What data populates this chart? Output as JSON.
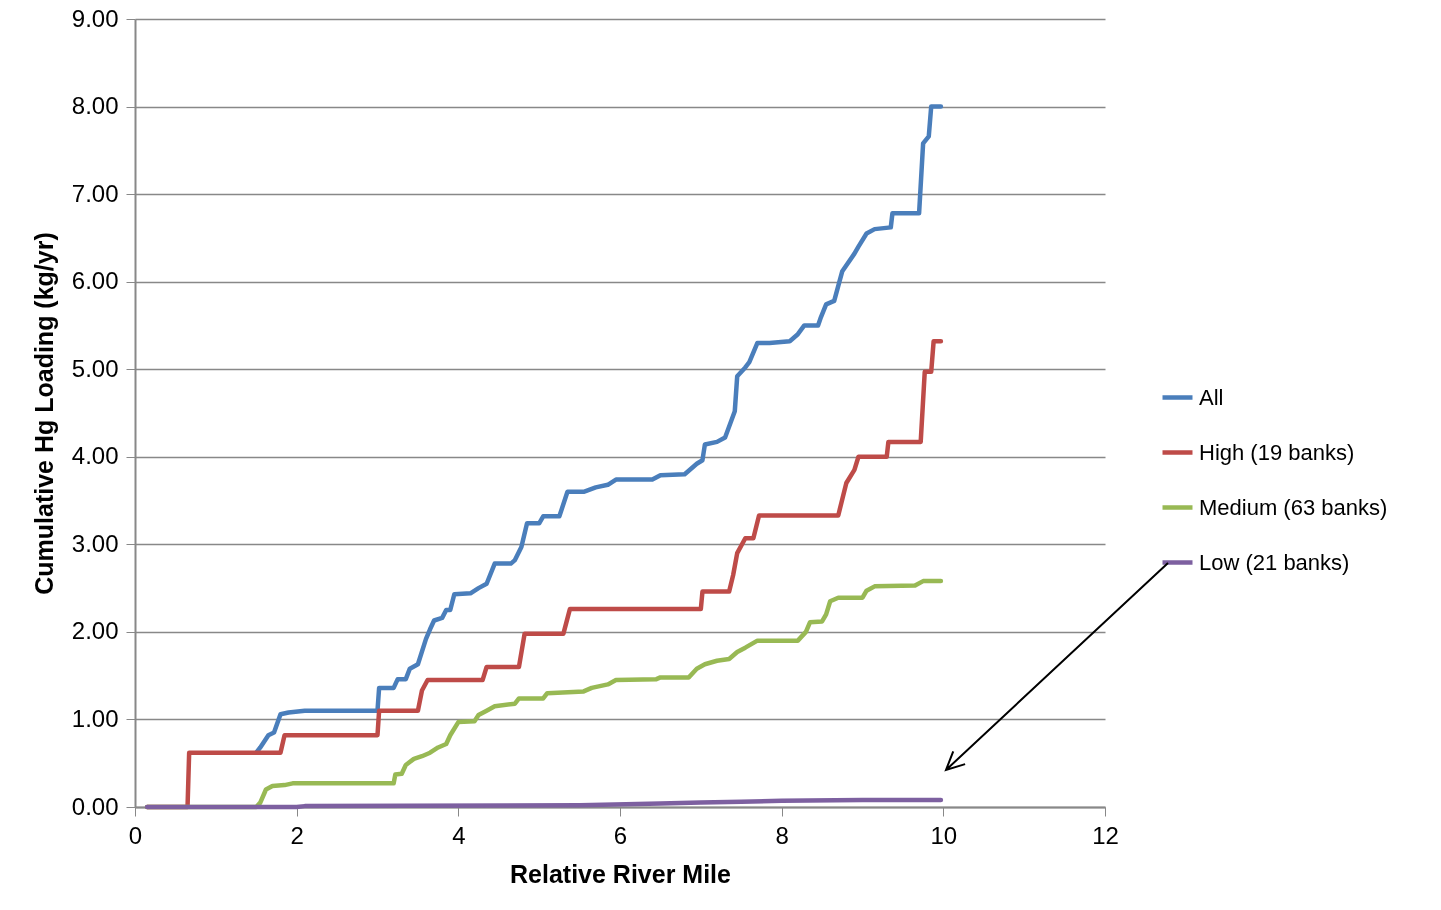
{
  "chart_data": {
    "type": "line",
    "xlabel": "Relative River Mile",
    "ylabel": "Cumulative Hg Loading (kg/yr)",
    "xlim": [
      0,
      12
    ],
    "xticks": [
      0,
      2,
      4,
      6,
      8,
      10,
      12
    ],
    "ylim": [
      0,
      9
    ],
    "yticks": [
      {
        "value": 0,
        "label": "0.00"
      },
      {
        "value": 1,
        "label": "1.00"
      },
      {
        "value": 2,
        "label": "2.00"
      },
      {
        "value": 3,
        "label": "3.00"
      },
      {
        "value": 4,
        "label": "4.00"
      },
      {
        "value": 5,
        "label": "5.00"
      },
      {
        "value": 6,
        "label": "6.00"
      },
      {
        "value": 7,
        "label": "7.00"
      },
      {
        "value": 8,
        "label": "8.00"
      },
      {
        "value": 9,
        "label": "9.00"
      }
    ],
    "grid": "y",
    "legend": "right",
    "marker": "none",
    "line_style": "solid",
    "series": [
      {
        "name": "All",
        "color": "#4a7ebb",
        "x": [
          1.5,
          1.55,
          1.65,
          1.72,
          1.8,
          1.9,
          2.1,
          3.0,
          3.02,
          3.2,
          3.25,
          3.35,
          3.4,
          3.5,
          3.6,
          3.65,
          3.7,
          3.8,
          3.85,
          3.9,
          3.95,
          4.15,
          4.25,
          4.35,
          4.45,
          4.65,
          4.7,
          4.78,
          4.85,
          5.0,
          5.05,
          5.25,
          5.35,
          5.55,
          5.7,
          5.85,
          5.95,
          6.4,
          6.5,
          6.8,
          6.95,
          7.02,
          7.05,
          7.2,
          7.3,
          7.38,
          7.42,
          7.45,
          7.55,
          7.6,
          7.7,
          7.85,
          8.1,
          8.2,
          8.28,
          8.45,
          8.48,
          8.55,
          8.65,
          8.75,
          8.9,
          8.95,
          9.05,
          9.15,
          9.35,
          9.37,
          9.7,
          9.75,
          9.82,
          9.85,
          9.97
        ],
        "values": [
          0.62,
          0.68,
          0.82,
          0.85,
          1.06,
          1.08,
          1.1,
          1.1,
          1.36,
          1.36,
          1.46,
          1.46,
          1.58,
          1.63,
          1.92,
          2.03,
          2.13,
          2.16,
          2.25,
          2.25,
          2.43,
          2.44,
          2.5,
          2.55,
          2.78,
          2.78,
          2.82,
          2.97,
          3.24,
          3.24,
          3.32,
          3.32,
          3.6,
          3.6,
          3.65,
          3.68,
          3.74,
          3.74,
          3.79,
          3.8,
          3.92,
          3.96,
          4.14,
          4.17,
          4.22,
          4.42,
          4.52,
          4.92,
          5.02,
          5.08,
          5.3,
          5.3,
          5.32,
          5.4,
          5.5,
          5.5,
          5.58,
          5.74,
          5.78,
          6.12,
          6.32,
          6.4,
          6.55,
          6.6,
          6.62,
          6.78,
          6.78,
          7.58,
          7.66,
          8.0,
          8.0
        ]
      },
      {
        "name": "High (19 banks)",
        "color": "#be4b48",
        "x": [
          0.15,
          0.65,
          0.67,
          1.8,
          1.85,
          3.0,
          3.02,
          3.5,
          3.55,
          3.62,
          4.3,
          4.35,
          4.75,
          4.82,
          5.3,
          5.38,
          7.0,
          7.02,
          7.35,
          7.4,
          7.45,
          7.55,
          7.65,
          7.72,
          8.7,
          8.8,
          8.9,
          8.95,
          9.3,
          9.32,
          9.72,
          9.77,
          9.85,
          9.88,
          9.97
        ],
        "values": [
          0,
          0,
          0.62,
          0.62,
          0.82,
          0.82,
          1.1,
          1.1,
          1.33,
          1.45,
          1.45,
          1.6,
          1.6,
          1.98,
          1.98,
          2.26,
          2.26,
          2.46,
          2.46,
          2.65,
          2.9,
          3.07,
          3.07,
          3.33,
          3.33,
          3.7,
          3.85,
          4.0,
          4.0,
          4.17,
          4.17,
          4.97,
          4.97,
          5.32,
          5.32
        ]
      },
      {
        "name": "Medium (63 banks)",
        "color": "#98b954",
        "x": [
          0.15,
          1.5,
          1.55,
          1.62,
          1.7,
          1.85,
          1.95,
          3.2,
          3.22,
          3.3,
          3.35,
          3.45,
          3.55,
          3.65,
          3.75,
          3.85,
          3.9,
          4.0,
          4.2,
          4.25,
          4.35,
          4.45,
          4.7,
          4.75,
          5.05,
          5.1,
          5.55,
          5.65,
          5.85,
          5.95,
          6.45,
          6.5,
          6.85,
          6.95,
          7.05,
          7.2,
          7.35,
          7.45,
          7.55,
          7.7,
          8.2,
          8.3,
          8.35,
          8.5,
          8.55,
          8.6,
          8.7,
          9.0,
          9.05,
          9.15,
          9.65,
          9.75,
          9.97
        ],
        "values": [
          0,
          0,
          0.05,
          0.2,
          0.24,
          0.25,
          0.27,
          0.27,
          0.37,
          0.38,
          0.48,
          0.55,
          0.58,
          0.62,
          0.68,
          0.72,
          0.82,
          0.97,
          0.98,
          1.05,
          1.1,
          1.15,
          1.18,
          1.24,
          1.24,
          1.3,
          1.32,
          1.36,
          1.4,
          1.45,
          1.46,
          1.48,
          1.48,
          1.58,
          1.63,
          1.67,
          1.69,
          1.77,
          1.82,
          1.9,
          1.9,
          2.0,
          2.11,
          2.12,
          2.2,
          2.35,
          2.39,
          2.39,
          2.47,
          2.52,
          2.53,
          2.58,
          2.58
        ]
      },
      {
        "name": "Low (21 banks)",
        "color": "#7d60a0",
        "x": [
          0.15,
          2.0,
          2.1,
          5.5,
          6.5,
          7.0,
          7.5,
          8.0,
          9.0,
          9.97
        ],
        "values": [
          0,
          0,
          0.01,
          0.02,
          0.04,
          0.05,
          0.06,
          0.07,
          0.08,
          0.08
        ]
      }
    ]
  }
}
